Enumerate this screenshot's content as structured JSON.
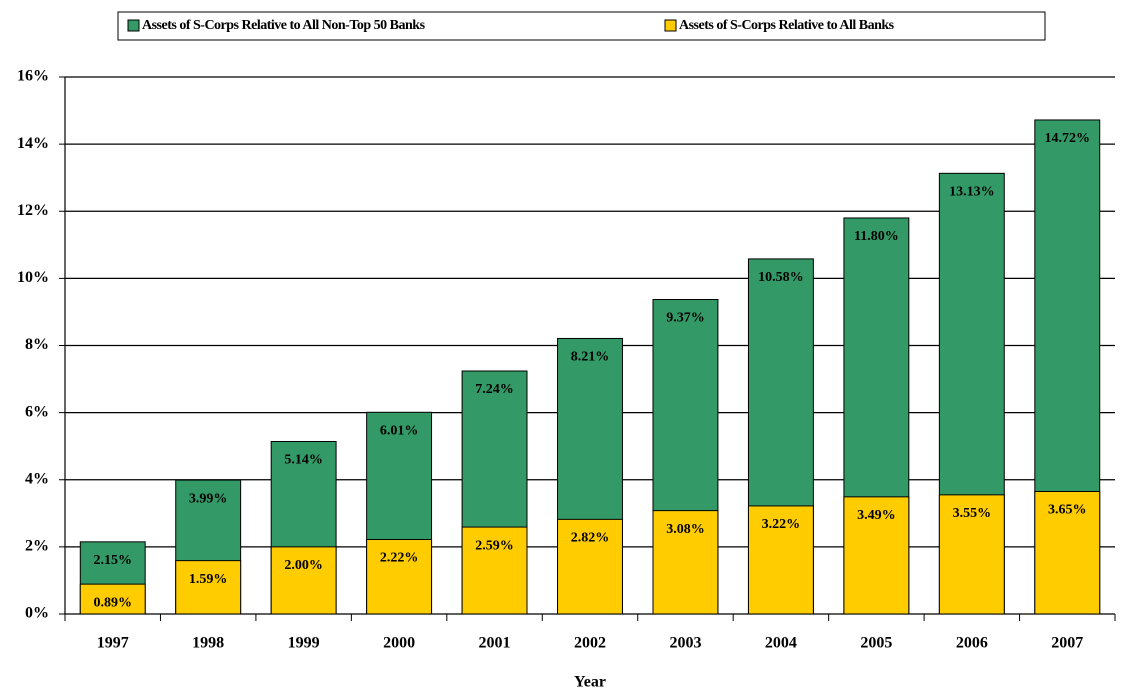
{
  "chart_data": {
    "type": "bar",
    "bar_mode": "overlap",
    "x_label": "Year",
    "categories": [
      "1997",
      "1998",
      "1999",
      "2000",
      "2001",
      "2002",
      "2003",
      "2004",
      "2005",
      "2006",
      "2007"
    ],
    "series": [
      {
        "name": "Assets of S-Corps Relative to All Non-Top 50 Banks",
        "color": "#339966",
        "values": [
          2.15,
          3.99,
          5.14,
          6.01,
          7.24,
          8.21,
          9.37,
          10.58,
          11.8,
          13.13,
          14.72
        ],
        "value_labels": [
          "2.15%",
          "3.99%",
          "5.14%",
          "6.01%",
          "7.24%",
          "8.21%",
          "9.37%",
          "10.58%",
          "11.80%",
          "13.13%",
          "14.72%"
        ]
      },
      {
        "name": "Assets of S-Corps Relative to All Banks",
        "color": "#ffcc00",
        "values": [
          0.89,
          1.59,
          2.0,
          2.22,
          2.59,
          2.82,
          3.08,
          3.22,
          3.49,
          3.55,
          3.65
        ],
        "value_labels": [
          "0.89%",
          "1.59%",
          "2.00%",
          "2.22%",
          "2.59%",
          "2.82%",
          "3.08%",
          "3.22%",
          "3.49%",
          "3.55%",
          "3.65%"
        ]
      }
    ],
    "ylim": [
      0,
      16
    ],
    "yticks": [
      {
        "value": 0,
        "label": "0%"
      },
      {
        "value": 2,
        "label": "2%"
      },
      {
        "value": 4,
        "label": "4%"
      },
      {
        "value": 6,
        "label": "6%"
      },
      {
        "value": 8,
        "label": "8%"
      },
      {
        "value": 10,
        "label": "10%"
      },
      {
        "value": 12,
        "label": "12%"
      },
      {
        "value": 14,
        "label": "14%"
      },
      {
        "value": 16,
        "label": "16%"
      }
    ],
    "grid": true,
    "legend": "top"
  }
}
